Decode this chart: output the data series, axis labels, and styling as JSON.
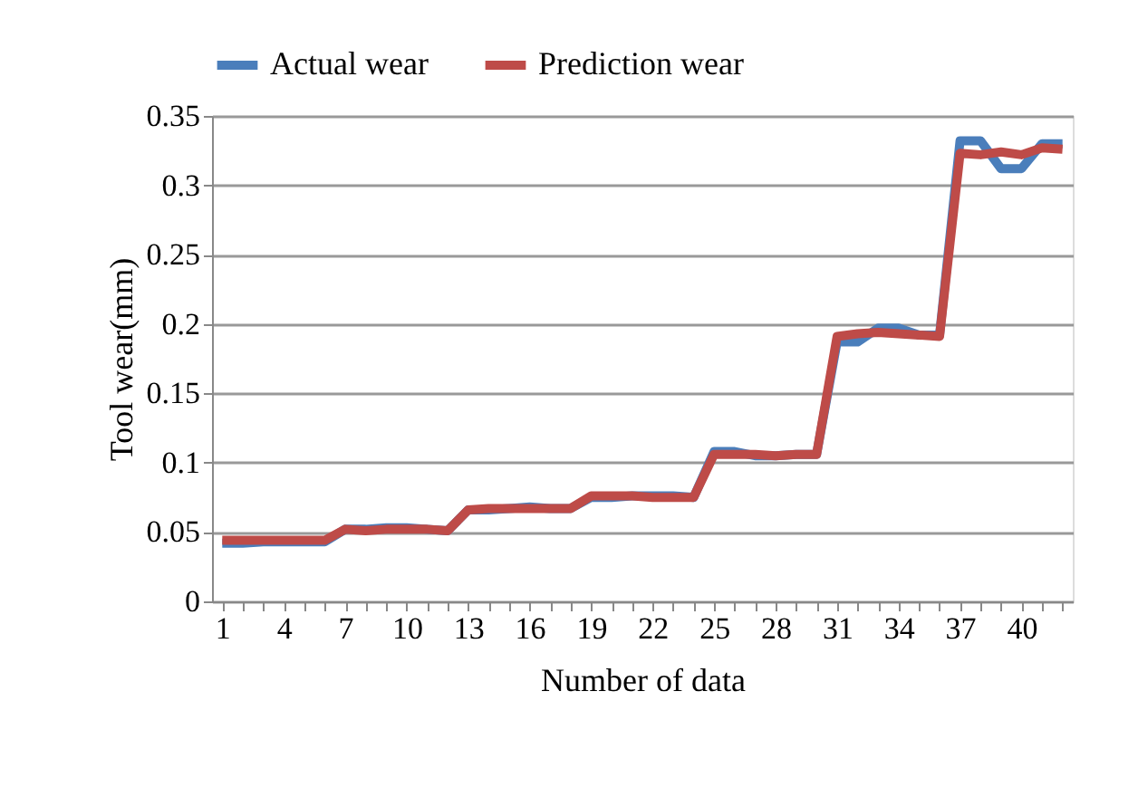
{
  "chart_data": {
    "type": "line",
    "xlabel": "Number of data",
    "ylabel": "Tool wear(mm)",
    "categories": [
      "1",
      null,
      null,
      "4",
      null,
      null,
      "7",
      null,
      null,
      "10",
      null,
      null,
      "13",
      null,
      null,
      "16",
      null,
      null,
      "19",
      null,
      null,
      "22",
      null,
      null,
      "25",
      null,
      null,
      "28",
      null,
      null,
      "31",
      null,
      null,
      "34",
      null,
      null,
      "37",
      null,
      null,
      "40",
      null,
      null
    ],
    "series": [
      {
        "name": "Actual wear",
        "color": "#4a7ebb",
        "values": [
          0.042,
          0.042,
          0.043,
          0.043,
          0.043,
          0.043,
          0.052,
          0.052,
          0.053,
          0.053,
          0.052,
          0.051,
          0.066,
          0.066,
          0.067,
          0.068,
          0.067,
          0.067,
          0.075,
          0.075,
          0.076,
          0.076,
          0.076,
          0.075,
          0.108,
          0.108,
          0.105,
          0.105,
          0.106,
          0.106,
          0.187,
          0.187,
          0.197,
          0.197,
          0.192,
          0.192,
          0.332,
          0.332,
          0.312,
          0.312,
          0.33,
          0.33
        ]
      },
      {
        "name": "Prediction wear",
        "color": "#be4b48",
        "values": [
          0.044,
          0.044,
          0.044,
          0.044,
          0.044,
          0.044,
          0.052,
          0.051,
          0.052,
          0.052,
          0.052,
          0.051,
          0.066,
          0.067,
          0.067,
          0.067,
          0.067,
          0.067,
          0.076,
          0.076,
          0.076,
          0.075,
          0.075,
          0.075,
          0.106,
          0.106,
          0.106,
          0.105,
          0.106,
          0.106,
          0.191,
          0.193,
          0.194,
          0.193,
          0.192,
          0.191,
          0.323,
          0.322,
          0.324,
          0.322,
          0.327,
          0.326
        ]
      }
    ],
    "ylim": [
      0,
      0.35
    ],
    "yticks": [
      0,
      0.05,
      0.1,
      0.15,
      0.2,
      0.25,
      0.3,
      0.35
    ],
    "grid": "y",
    "legend": "top",
    "marker": "none",
    "line_style": "solid"
  }
}
